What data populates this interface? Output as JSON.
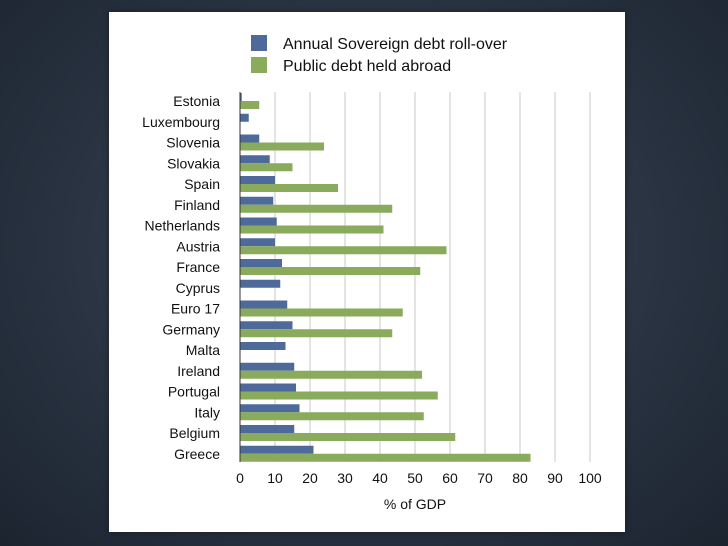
{
  "chart_data": {
    "type": "bar",
    "orientation": "horizontal",
    "categories": [
      "Estonia",
      "Luxembourg",
      "Slovenia",
      "Slovakia",
      "Spain",
      "Finland",
      "Netherlands",
      "Austria",
      "France",
      "Cyprus",
      "Euro 17",
      "Germany",
      "Malta",
      "Ireland",
      "Portugal",
      "Italy",
      "Belgium",
      "Greece"
    ],
    "series": [
      {
        "name": "Annual Sovereign debt roll-over",
        "color": "#4d6a9a",
        "values": [
          0.5,
          2.5,
          5.5,
          8.5,
          10,
          9.5,
          10.5,
          10,
          12,
          11.5,
          13.5,
          15,
          13,
          15.5,
          16,
          17,
          15.5,
          21
        ]
      },
      {
        "name": "Public debt held abroad",
        "color": "#8aaa5c",
        "values": [
          5.5,
          null,
          24,
          15,
          28,
          43.5,
          41,
          59,
          51.5,
          null,
          46.5,
          43.5,
          null,
          52,
          56.5,
          52.5,
          61.5,
          83
        ]
      }
    ],
    "xlim": [
      0,
      100
    ],
    "xticks": [
      "0",
      "10",
      "20",
      "30",
      "40",
      "50",
      "60",
      "70",
      "80",
      "90",
      "100"
    ],
    "xlabel": "% of GDP",
    "ylabel": "",
    "title": "",
    "grid": "vertical",
    "legend_position": "top"
  }
}
